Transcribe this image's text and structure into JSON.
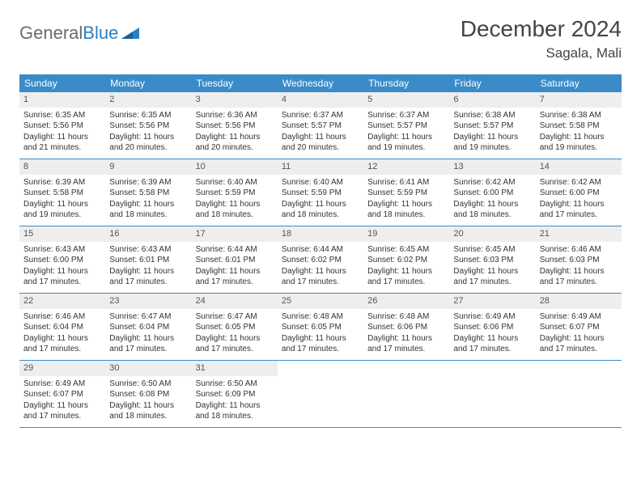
{
  "logo": {
    "text_a": "General",
    "text_b": "Blue"
  },
  "title": "December 2024",
  "location": "Sagala, Mali",
  "colors": {
    "header_bg": "#3b8bc9",
    "header_fg": "#ffffff",
    "daynum_bg": "#eeeeee",
    "row_border": "#3b8bc9",
    "logo_gray": "#6b6b6b",
    "logo_blue": "#2a7fc9"
  },
  "days_of_week": [
    "Sunday",
    "Monday",
    "Tuesday",
    "Wednesday",
    "Thursday",
    "Friday",
    "Saturday"
  ],
  "weeks": [
    [
      {
        "n": "1",
        "sr": "Sunrise: 6:35 AM",
        "ss": "Sunset: 5:56 PM",
        "d1": "Daylight: 11 hours",
        "d2": "and 21 minutes."
      },
      {
        "n": "2",
        "sr": "Sunrise: 6:35 AM",
        "ss": "Sunset: 5:56 PM",
        "d1": "Daylight: 11 hours",
        "d2": "and 20 minutes."
      },
      {
        "n": "3",
        "sr": "Sunrise: 6:36 AM",
        "ss": "Sunset: 5:56 PM",
        "d1": "Daylight: 11 hours",
        "d2": "and 20 minutes."
      },
      {
        "n": "4",
        "sr": "Sunrise: 6:37 AM",
        "ss": "Sunset: 5:57 PM",
        "d1": "Daylight: 11 hours",
        "d2": "and 20 minutes."
      },
      {
        "n": "5",
        "sr": "Sunrise: 6:37 AM",
        "ss": "Sunset: 5:57 PM",
        "d1": "Daylight: 11 hours",
        "d2": "and 19 minutes."
      },
      {
        "n": "6",
        "sr": "Sunrise: 6:38 AM",
        "ss": "Sunset: 5:57 PM",
        "d1": "Daylight: 11 hours",
        "d2": "and 19 minutes."
      },
      {
        "n": "7",
        "sr": "Sunrise: 6:38 AM",
        "ss": "Sunset: 5:58 PM",
        "d1": "Daylight: 11 hours",
        "d2": "and 19 minutes."
      }
    ],
    [
      {
        "n": "8",
        "sr": "Sunrise: 6:39 AM",
        "ss": "Sunset: 5:58 PM",
        "d1": "Daylight: 11 hours",
        "d2": "and 19 minutes."
      },
      {
        "n": "9",
        "sr": "Sunrise: 6:39 AM",
        "ss": "Sunset: 5:58 PM",
        "d1": "Daylight: 11 hours",
        "d2": "and 18 minutes."
      },
      {
        "n": "10",
        "sr": "Sunrise: 6:40 AM",
        "ss": "Sunset: 5:59 PM",
        "d1": "Daylight: 11 hours",
        "d2": "and 18 minutes."
      },
      {
        "n": "11",
        "sr": "Sunrise: 6:40 AM",
        "ss": "Sunset: 5:59 PM",
        "d1": "Daylight: 11 hours",
        "d2": "and 18 minutes."
      },
      {
        "n": "12",
        "sr": "Sunrise: 6:41 AM",
        "ss": "Sunset: 5:59 PM",
        "d1": "Daylight: 11 hours",
        "d2": "and 18 minutes."
      },
      {
        "n": "13",
        "sr": "Sunrise: 6:42 AM",
        "ss": "Sunset: 6:00 PM",
        "d1": "Daylight: 11 hours",
        "d2": "and 18 minutes."
      },
      {
        "n": "14",
        "sr": "Sunrise: 6:42 AM",
        "ss": "Sunset: 6:00 PM",
        "d1": "Daylight: 11 hours",
        "d2": "and 17 minutes."
      }
    ],
    [
      {
        "n": "15",
        "sr": "Sunrise: 6:43 AM",
        "ss": "Sunset: 6:00 PM",
        "d1": "Daylight: 11 hours",
        "d2": "and 17 minutes."
      },
      {
        "n": "16",
        "sr": "Sunrise: 6:43 AM",
        "ss": "Sunset: 6:01 PM",
        "d1": "Daylight: 11 hours",
        "d2": "and 17 minutes."
      },
      {
        "n": "17",
        "sr": "Sunrise: 6:44 AM",
        "ss": "Sunset: 6:01 PM",
        "d1": "Daylight: 11 hours",
        "d2": "and 17 minutes."
      },
      {
        "n": "18",
        "sr": "Sunrise: 6:44 AM",
        "ss": "Sunset: 6:02 PM",
        "d1": "Daylight: 11 hours",
        "d2": "and 17 minutes."
      },
      {
        "n": "19",
        "sr": "Sunrise: 6:45 AM",
        "ss": "Sunset: 6:02 PM",
        "d1": "Daylight: 11 hours",
        "d2": "and 17 minutes."
      },
      {
        "n": "20",
        "sr": "Sunrise: 6:45 AM",
        "ss": "Sunset: 6:03 PM",
        "d1": "Daylight: 11 hours",
        "d2": "and 17 minutes."
      },
      {
        "n": "21",
        "sr": "Sunrise: 6:46 AM",
        "ss": "Sunset: 6:03 PM",
        "d1": "Daylight: 11 hours",
        "d2": "and 17 minutes."
      }
    ],
    [
      {
        "n": "22",
        "sr": "Sunrise: 6:46 AM",
        "ss": "Sunset: 6:04 PM",
        "d1": "Daylight: 11 hours",
        "d2": "and 17 minutes."
      },
      {
        "n": "23",
        "sr": "Sunrise: 6:47 AM",
        "ss": "Sunset: 6:04 PM",
        "d1": "Daylight: 11 hours",
        "d2": "and 17 minutes."
      },
      {
        "n": "24",
        "sr": "Sunrise: 6:47 AM",
        "ss": "Sunset: 6:05 PM",
        "d1": "Daylight: 11 hours",
        "d2": "and 17 minutes."
      },
      {
        "n": "25",
        "sr": "Sunrise: 6:48 AM",
        "ss": "Sunset: 6:05 PM",
        "d1": "Daylight: 11 hours",
        "d2": "and 17 minutes."
      },
      {
        "n": "26",
        "sr": "Sunrise: 6:48 AM",
        "ss": "Sunset: 6:06 PM",
        "d1": "Daylight: 11 hours",
        "d2": "and 17 minutes."
      },
      {
        "n": "27",
        "sr": "Sunrise: 6:49 AM",
        "ss": "Sunset: 6:06 PM",
        "d1": "Daylight: 11 hours",
        "d2": "and 17 minutes."
      },
      {
        "n": "28",
        "sr": "Sunrise: 6:49 AM",
        "ss": "Sunset: 6:07 PM",
        "d1": "Daylight: 11 hours",
        "d2": "and 17 minutes."
      }
    ],
    [
      {
        "n": "29",
        "sr": "Sunrise: 6:49 AM",
        "ss": "Sunset: 6:07 PM",
        "d1": "Daylight: 11 hours",
        "d2": "and 17 minutes."
      },
      {
        "n": "30",
        "sr": "Sunrise: 6:50 AM",
        "ss": "Sunset: 6:08 PM",
        "d1": "Daylight: 11 hours",
        "d2": "and 18 minutes."
      },
      {
        "n": "31",
        "sr": "Sunrise: 6:50 AM",
        "ss": "Sunset: 6:09 PM",
        "d1": "Daylight: 11 hours",
        "d2": "and 18 minutes."
      },
      {
        "empty": true
      },
      {
        "empty": true
      },
      {
        "empty": true
      },
      {
        "empty": true
      }
    ]
  ]
}
